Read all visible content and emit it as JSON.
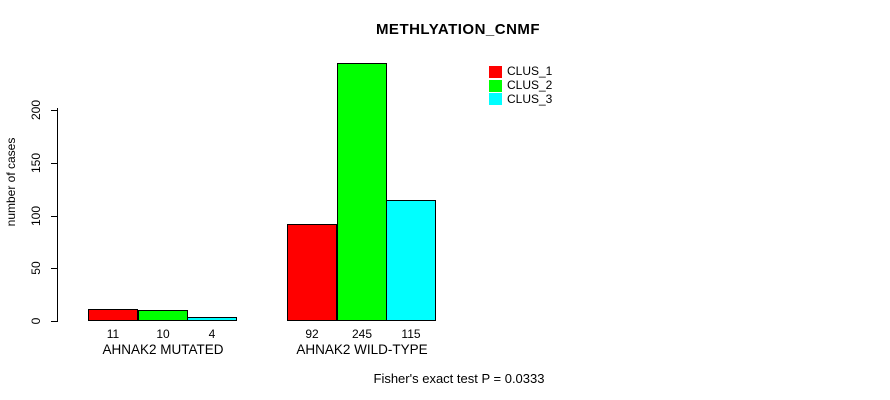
{
  "chart_data": {
    "type": "bar",
    "title": "METHLYATION_CNMF",
    "xlabel": "",
    "ylabel": "number of cases",
    "categories": [
      "AHNAK2 MUTATED",
      "AHNAK2 WILD-TYPE"
    ],
    "series": [
      {
        "name": "CLUS_1",
        "color": "#ff0000",
        "values": [
          11,
          92
        ]
      },
      {
        "name": "CLUS_2",
        "color": "#00ff00",
        "values": [
          10,
          245
        ]
      },
      {
        "name": "CLUS_3",
        "color": "#00ffff",
        "values": [
          4,
          115
        ]
      }
    ],
    "yticks": [
      0,
      50,
      100,
      150,
      200
    ],
    "ylim": [
      0,
      245
    ],
    "grid": false,
    "legend_position": "top-right",
    "bar_border_color": "#000000",
    "annotation": "Fisher's exact test P = 0.0333"
  }
}
